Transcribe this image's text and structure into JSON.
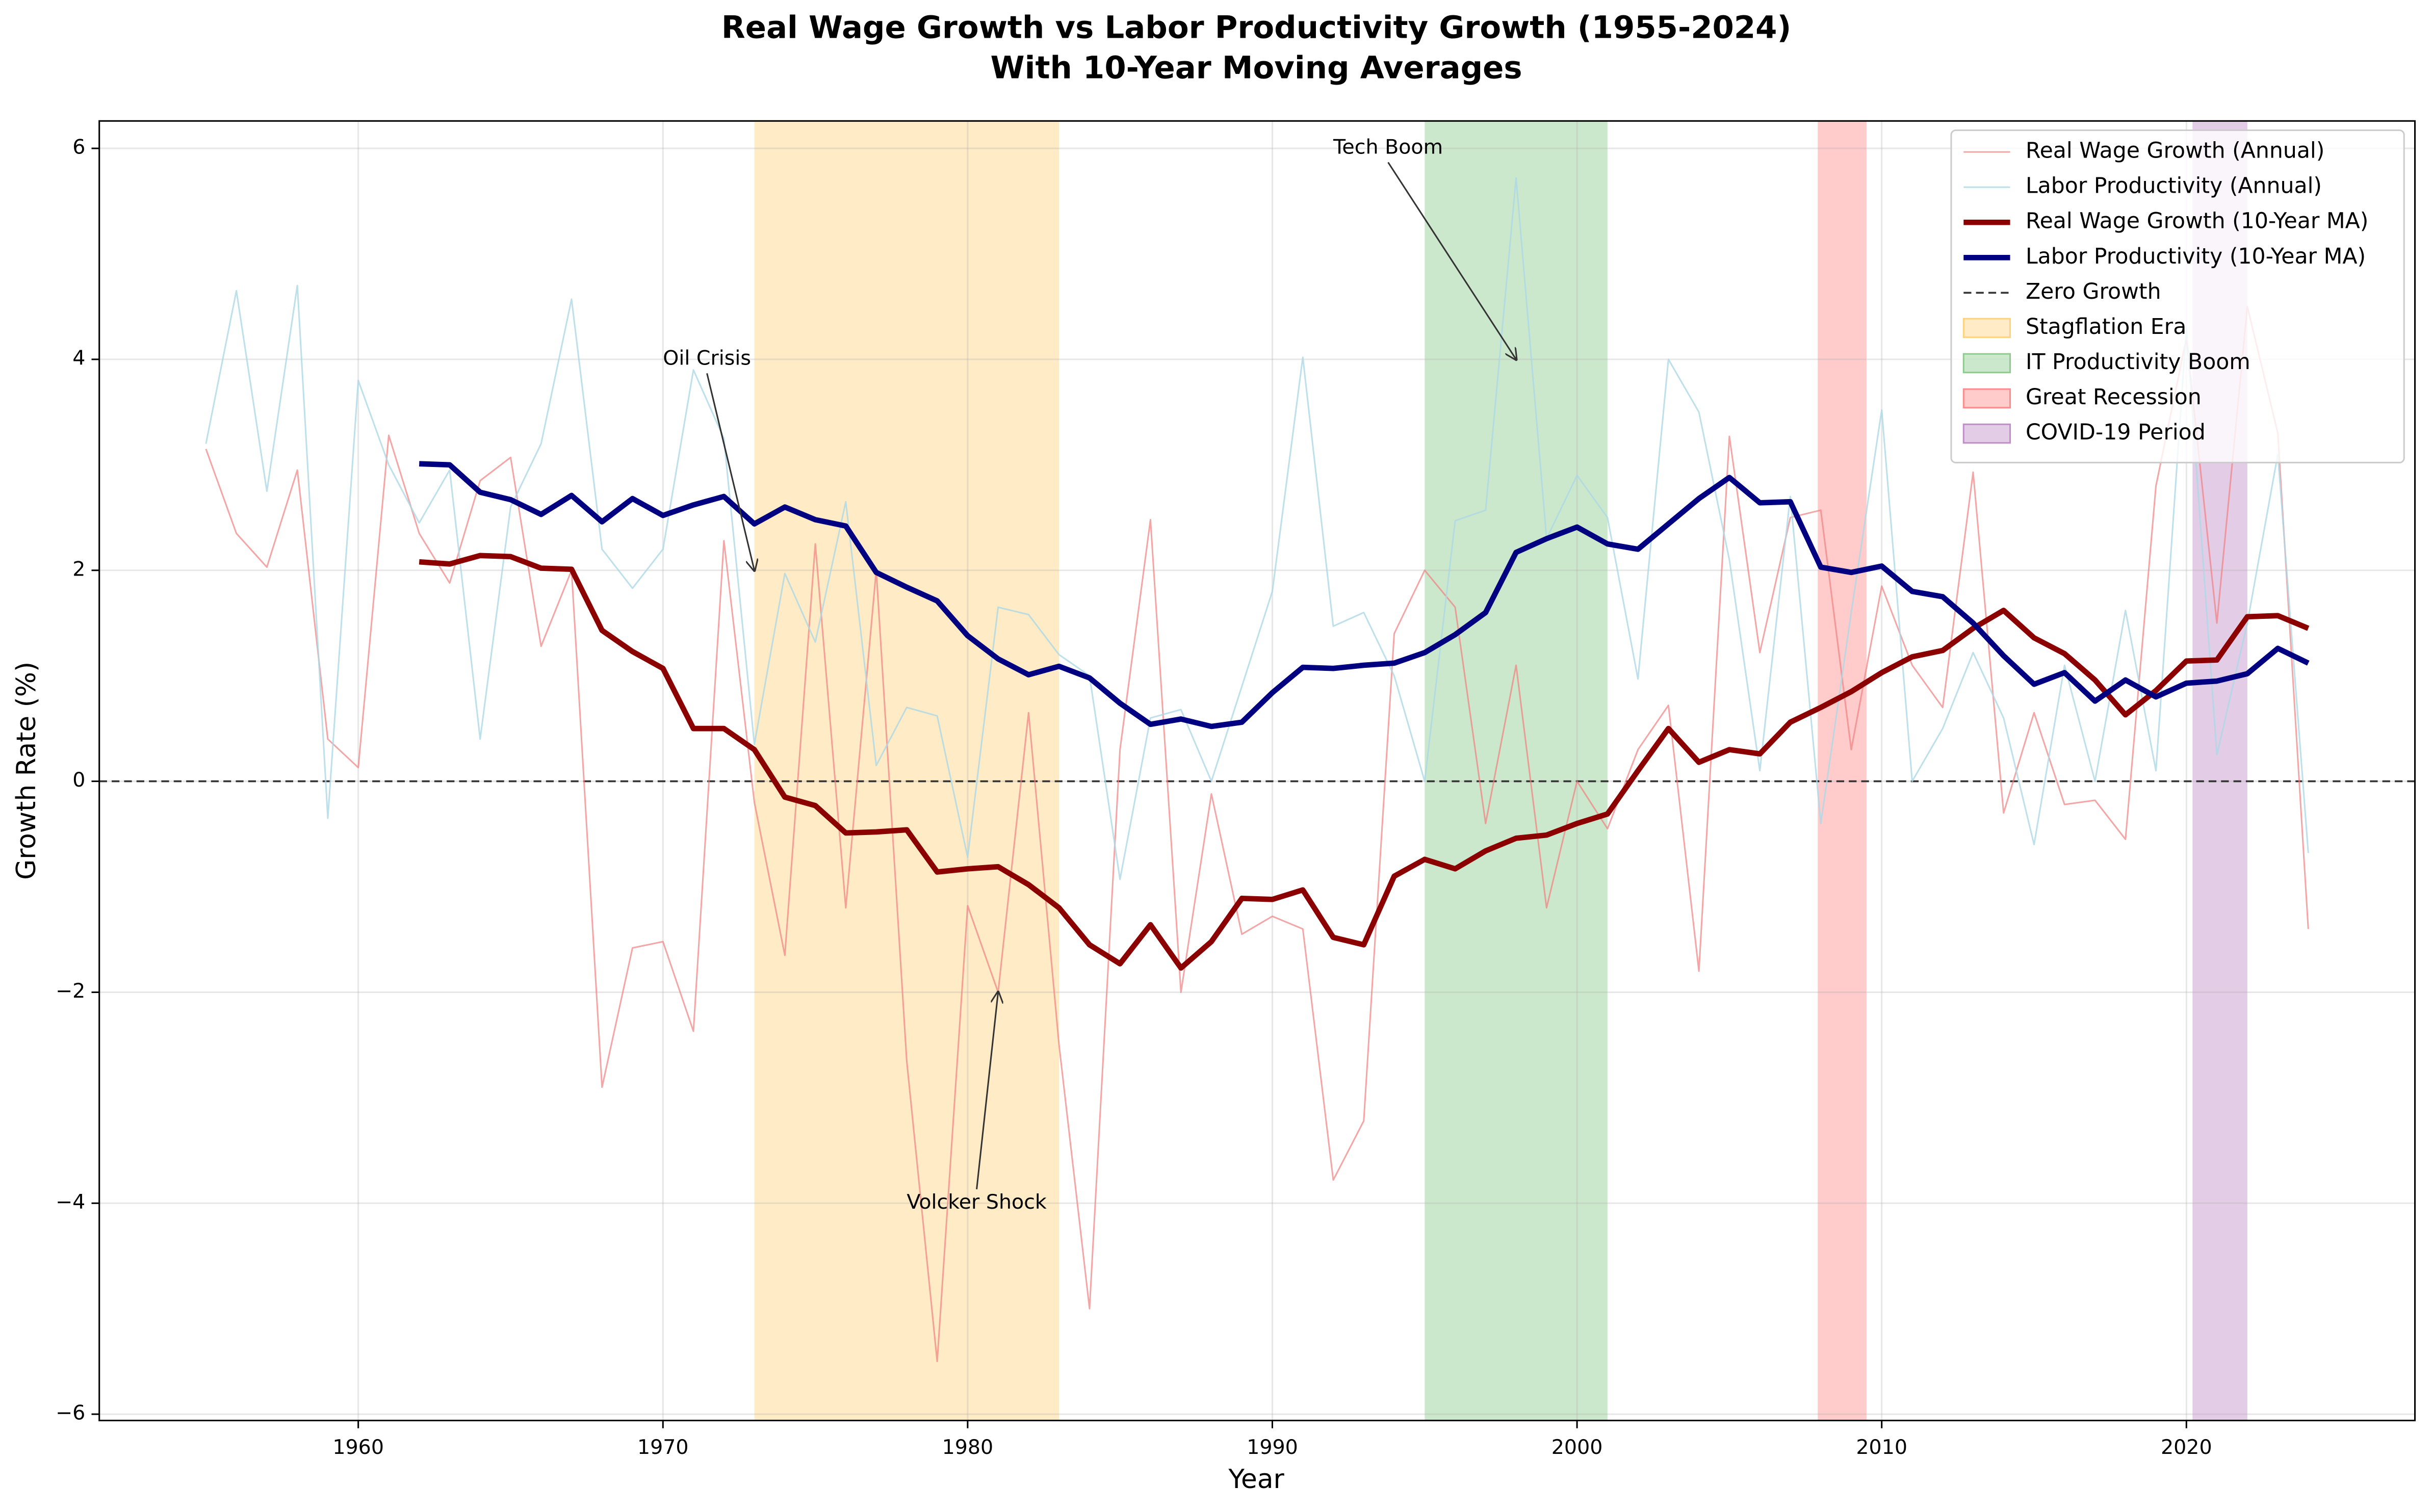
{
  "chart_data": {
    "type": "line",
    "title": "Real Wage Growth vs Labor Productivity Growth (1955-2024)",
    "subtitle": "With 10-Year Moving Averages",
    "x_label": "Year",
    "y_label": "Growth Rate (%)",
    "x": [
      1955,
      1956,
      1957,
      1958,
      1959,
      1960,
      1961,
      1962,
      1963,
      1964,
      1965,
      1966,
      1967,
      1968,
      1969,
      1970,
      1971,
      1972,
      1973,
      1974,
      1975,
      1976,
      1977,
      1978,
      1979,
      1980,
      1981,
      1982,
      1983,
      1984,
      1985,
      1986,
      1987,
      1988,
      1989,
      1990,
      1991,
      1992,
      1993,
      1994,
      1995,
      1996,
      1997,
      1998,
      1999,
      2000,
      2001,
      2002,
      2003,
      2004,
      2005,
      2006,
      2007,
      2008,
      2009,
      2010,
      2011,
      2012,
      2013,
      2014,
      2015,
      2016,
      2017,
      2018,
      2019,
      2020,
      2021,
      2022,
      2023,
      2024
    ],
    "series": [
      {
        "name": "Real Wage Growth (Annual)",
        "color": "#f08080",
        "linewidth": 1,
        "opacity": 0.7,
        "values": [
          3.15,
          2.35,
          2.03,
          2.95,
          0.4,
          0.13,
          3.28,
          2.35,
          1.88,
          2.85,
          3.07,
          1.28,
          2.0,
          -2.9,
          -1.58,
          -1.52,
          -2.37,
          2.28,
          -0.2,
          -1.65,
          2.25,
          -1.2,
          2.0,
          -2.65,
          -5.5,
          -1.18,
          -2.0,
          0.65,
          -2.5,
          -5.0,
          0.3,
          2.48,
          -2.0,
          -0.12,
          -1.45,
          -1.28,
          -1.4,
          -3.78,
          -3.22,
          1.4,
          2.0,
          1.65,
          -0.4,
          1.1,
          -1.2,
          0.0,
          -0.45,
          0.3,
          0.72,
          -1.8,
          3.27,
          1.22,
          2.5,
          2.57,
          0.3,
          1.85,
          1.1,
          0.7,
          2.93,
          -0.3,
          0.65,
          -0.22,
          -0.18,
          -0.55,
          2.8,
          4.2,
          1.5,
          4.5,
          3.3,
          -1.4
        ]
      },
      {
        "name": "Labor Productivity (Annual)",
        "color": "#add8e6",
        "linewidth": 1,
        "opacity": 0.8,
        "values": [
          3.2,
          4.65,
          2.75,
          4.7,
          -0.35,
          3.8,
          3.0,
          2.45,
          2.95,
          0.4,
          2.6,
          3.2,
          4.57,
          2.2,
          1.83,
          2.2,
          3.9,
          3.25,
          0.35,
          1.97,
          1.32,
          2.65,
          0.15,
          0.7,
          0.62,
          -0.72,
          1.65,
          1.58,
          1.2,
          1.0,
          -0.93,
          0.6,
          0.68,
          0.0,
          0.9,
          1.8,
          4.02,
          1.47,
          1.6,
          1.0,
          0.0,
          2.47,
          2.57,
          5.72,
          2.3,
          2.9,
          2.5,
          0.97,
          4.0,
          3.5,
          2.1,
          0.1,
          2.7,
          -0.4,
          1.6,
          3.52,
          0.0,
          0.5,
          1.22,
          0.6,
          -0.6,
          1.1,
          0.0,
          1.62,
          0.1,
          4.3,
          0.25,
          1.5,
          3.1,
          -0.68
        ]
      },
      {
        "name": "Real Wage Growth (10-Year MA)",
        "color": "#8b0000",
        "linewidth": 3.5,
        "opacity": 1,
        "values": [
          null,
          null,
          null,
          null,
          null,
          null,
          null,
          2.08,
          2.06,
          2.14,
          2.13,
          2.02,
          2.01,
          1.43,
          1.23,
          1.07,
          0.5,
          0.5,
          0.3,
          -0.15,
          -0.23,
          -0.49,
          -0.48,
          -0.46,
          -0.86,
          -0.83,
          -0.81,
          -0.98,
          -1.2,
          -1.55,
          -1.73,
          -1.36,
          -1.77,
          -1.52,
          -1.11,
          -1.12,
          -1.03,
          -1.48,
          -1.55,
          -0.9,
          -0.74,
          -0.83,
          -0.66,
          -0.54,
          -0.51,
          -0.4,
          -0.31,
          0.1,
          0.5,
          0.18,
          0.3,
          0.26,
          0.56,
          0.7,
          0.85,
          1.03,
          1.18,
          1.24,
          1.45,
          1.62,
          1.36,
          1.21,
          0.96,
          0.63,
          0.86,
          1.14,
          1.15,
          1.56,
          1.57,
          1.45
        ]
      },
      {
        "name": "Labor Productivity (10-Year MA)",
        "color": "#000080",
        "linewidth": 3.5,
        "opacity": 1,
        "values": [
          null,
          null,
          null,
          null,
          null,
          null,
          null,
          3.01,
          3.0,
          2.74,
          2.67,
          2.53,
          2.71,
          2.46,
          2.68,
          2.52,
          2.62,
          2.7,
          2.44,
          2.6,
          2.48,
          2.42,
          1.98,
          1.84,
          1.71,
          1.38,
          1.16,
          1.01,
          1.09,
          0.98,
          0.74,
          0.54,
          0.59,
          0.52,
          0.56,
          0.84,
          1.08,
          1.07,
          1.1,
          1.12,
          1.22,
          1.39,
          1.6,
          2.17,
          2.3,
          2.41,
          2.25,
          2.2,
          2.44,
          2.68,
          2.88,
          2.64,
          2.65,
          2.03,
          1.98,
          2.04,
          1.8,
          1.75,
          1.5,
          1.19,
          0.92,
          1.03,
          0.76,
          0.96,
          0.8,
          0.93,
          0.95,
          1.02,
          1.26,
          1.12
        ]
      }
    ],
    "reference_line": {
      "name": "Zero Growth",
      "value": 0,
      "color": "#333333"
    },
    "spans": [
      {
        "name": "Stagflation Era",
        "color": "#ffd27f",
        "xmin": 1973,
        "xmax": 1983
      },
      {
        "name": "IT Productivity Boom",
        "color": "#8fcb8f",
        "xmin": 1995,
        "xmax": 2001
      },
      {
        "name": "Great Recession",
        "color": "#ff8c8c",
        "xmin": 2007.9,
        "xmax": 2009.5
      },
      {
        "name": "COVID-19 Period",
        "color": "#c08fc8",
        "xmin": 2020.2,
        "xmax": 2022
      }
    ],
    "annotations": [
      {
        "text": "Oil Crisis",
        "x": 1973,
        "y": 2.0,
        "text_x": 1970,
        "text_y": 4.0
      },
      {
        "text": "Volcker Shock",
        "x": 1981,
        "y": -2.0,
        "text_x": 1978,
        "text_y": -4.0
      },
      {
        "text": "Tech Boom",
        "x": 1998,
        "y": 4.0,
        "text_x": 1992,
        "text_y": 6.0
      }
    ],
    "xlim": [
      1951.5,
      2027.5
    ],
    "ylim": [
      -6.06,
      6.26
    ],
    "xticks": [
      1960,
      1970,
      1980,
      1990,
      2000,
      2010,
      2020
    ],
    "yticks": [
      {
        "value": -6,
        "label": "−6"
      },
      {
        "value": -4,
        "label": "−4"
      },
      {
        "value": -2,
        "label": "−2"
      },
      0,
      2,
      4,
      6
    ],
    "grid": true,
    "legend": "upper right"
  }
}
